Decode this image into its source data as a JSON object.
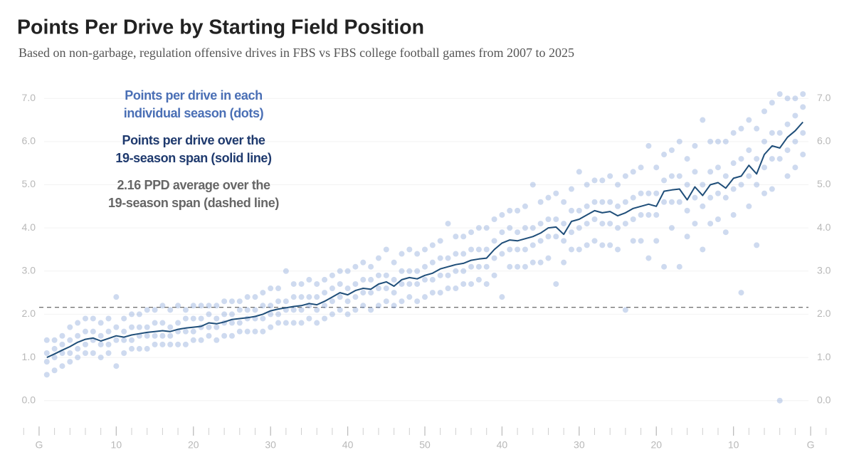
{
  "chart_data": {
    "type": "scatter_line",
    "title": "Points Per Drive by Starting Field Position",
    "subtitle": "Based on non-garbage, regulation offensive drives in FBS vs FBS college football games from 2007 to 2025",
    "annotations": [
      {
        "lines": [
          "Points per drive in each",
          "individual season (dots)"
        ],
        "color": "#4a6fb5"
      },
      {
        "lines": [
          "Points per drive over the",
          "19-season span (solid line)"
        ],
        "color": "#1f3a6e"
      },
      {
        "lines": [
          "2.16 PPD average over the",
          "19-season span (dashed line)"
        ],
        "color": "#666666"
      }
    ],
    "xlim": [
      -2.3,
      102.3
    ],
    "xticks": [
      {
        "value": 0,
        "label": "G"
      },
      10,
      20,
      30,
      40,
      50,
      {
        "value": 60,
        "label": "40"
      },
      {
        "value": 70,
        "label": "30"
      },
      {
        "value": 80,
        "label": "20"
      },
      {
        "value": 90,
        "label": "10"
      },
      {
        "value": 100,
        "label": "G"
      }
    ],
    "x_minor_tick_step": 2,
    "ylim": [
      -0.45,
      7.3
    ],
    "yticks": [
      {
        "value": 0,
        "label": "0.0"
      },
      {
        "value": 1,
        "label": "1.0"
      },
      {
        "value": 2,
        "label": "2.0"
      },
      {
        "value": 3,
        "label": "3.0"
      },
      {
        "value": 4,
        "label": "4.0"
      },
      {
        "value": 5,
        "label": "5.0"
      },
      {
        "value": 6,
        "label": "6.0"
      },
      {
        "value": 7,
        "label": "7.0"
      }
    ],
    "y2lim": [
      -0.45,
      7.3
    ],
    "y2ticks": [
      {
        "value": 0,
        "label": "0.0"
      },
      {
        "value": 1,
        "label": "1.0"
      },
      {
        "value": 2,
        "label": "2.0"
      },
      {
        "value": 3,
        "label": "3.0"
      },
      {
        "value": 4,
        "label": "4.0"
      },
      {
        "value": 5,
        "label": "5.0"
      },
      {
        "value": 6,
        "label": "6.0"
      },
      {
        "value": 7,
        "label": "7.0"
      }
    ],
    "grid": true,
    "reference_line": {
      "value": 2.16,
      "color": "#444444",
      "style": "dashed"
    },
    "dot_color": "#7f9fd6",
    "x": [
      1,
      2,
      3,
      4,
      5,
      6,
      7,
      8,
      9,
      10,
      11,
      12,
      13,
      14,
      15,
      16,
      17,
      18,
      19,
      20,
      21,
      22,
      23,
      24,
      25,
      26,
      27,
      28,
      29,
      30,
      31,
      32,
      33,
      34,
      35,
      36,
      37,
      38,
      39,
      40,
      41,
      42,
      43,
      44,
      45,
      46,
      47,
      48,
      49,
      50,
      51,
      52,
      53,
      54,
      55,
      56,
      57,
      58,
      59,
      60,
      61,
      62,
      63,
      64,
      65,
      66,
      67,
      68,
      69,
      70,
      71,
      72,
      73,
      74,
      75,
      76,
      77,
      78,
      79,
      80,
      81,
      82,
      83,
      84,
      85,
      86,
      87,
      88,
      89,
      90,
      91,
      92,
      93,
      94,
      95,
      96,
      97,
      98,
      99
    ],
    "line": {
      "color": "#1f4e79",
      "values": [
        1.0,
        1.08,
        1.17,
        1.25,
        1.35,
        1.42,
        1.45,
        1.38,
        1.44,
        1.5,
        1.47,
        1.52,
        1.55,
        1.58,
        1.6,
        1.62,
        1.6,
        1.65,
        1.68,
        1.7,
        1.72,
        1.8,
        1.78,
        1.82,
        1.88,
        1.9,
        1.92,
        1.95,
        2.0,
        2.08,
        2.12,
        2.15,
        2.18,
        2.2,
        2.25,
        2.22,
        2.3,
        2.4,
        2.5,
        2.45,
        2.55,
        2.6,
        2.58,
        2.7,
        2.75,
        2.65,
        2.8,
        2.85,
        2.82,
        2.9,
        2.95,
        3.05,
        3.1,
        3.15,
        3.18,
        3.25,
        3.28,
        3.3,
        3.5,
        3.65,
        3.72,
        3.7,
        3.75,
        3.8,
        3.88,
        4.0,
        4.02,
        3.85,
        4.15,
        4.2,
        4.3,
        4.4,
        4.35,
        4.38,
        4.28,
        4.35,
        4.45,
        4.5,
        4.55,
        4.5,
        4.85,
        4.88,
        4.9,
        4.65,
        4.95,
        4.75,
        5.0,
        5.05,
        4.92,
        5.15,
        5.2,
        5.45,
        5.25,
        5.7,
        5.9,
        5.85,
        6.1,
        6.25,
        6.45
      ]
    },
    "dots": [
      [
        0.6,
        0.9,
        1.1,
        1.4
      ],
      [
        0.7,
        1.0,
        1.2,
        1.4
      ],
      [
        0.8,
        1.1,
        1.3,
        1.5
      ],
      [
        0.9,
        1.1,
        1.4,
        1.7
      ],
      [
        1.0,
        1.2,
        1.5,
        1.8
      ],
      [
        1.1,
        1.3,
        1.6,
        1.9
      ],
      [
        1.1,
        1.4,
        1.6,
        1.9
      ],
      [
        1.0,
        1.3,
        1.5,
        1.8
      ],
      [
        1.1,
        1.3,
        1.6,
        1.9
      ],
      [
        0.8,
        1.4,
        1.7,
        2.4
      ],
      [
        1.1,
        1.4,
        1.6,
        1.9
      ],
      [
        1.2,
        1.4,
        1.7,
        2.0
      ],
      [
        1.2,
        1.5,
        1.7,
        2.0
      ],
      [
        1.2,
        1.5,
        1.7,
        2.1
      ],
      [
        1.3,
        1.5,
        1.8,
        2.1
      ],
      [
        1.3,
        1.5,
        1.8,
        2.2
      ],
      [
        1.3,
        1.5,
        1.7,
        2.1
      ],
      [
        1.3,
        1.6,
        1.8,
        2.2
      ],
      [
        1.3,
        1.6,
        1.9,
        2.1
      ],
      [
        1.4,
        1.6,
        1.9,
        2.2
      ],
      [
        1.4,
        1.7,
        1.9,
        2.2
      ],
      [
        1.5,
        1.7,
        2.0,
        2.2
      ],
      [
        1.4,
        1.7,
        1.9,
        2.2
      ],
      [
        1.5,
        1.8,
        2.0,
        2.3
      ],
      [
        1.5,
        1.8,
        2.0,
        2.3
      ],
      [
        1.6,
        1.8,
        2.1,
        2.3
      ],
      [
        1.6,
        1.9,
        2.1,
        2.4
      ],
      [
        1.6,
        1.9,
        2.1,
        2.4
      ],
      [
        1.6,
        1.9,
        2.2,
        2.5
      ],
      [
        1.7,
        2.0,
        2.2,
        2.6
      ],
      [
        1.8,
        2.0,
        2.3,
        2.6
      ],
      [
        1.8,
        2.1,
        2.3,
        3.0
      ],
      [
        1.8,
        2.1,
        2.4,
        2.7
      ],
      [
        1.8,
        2.1,
        2.4,
        2.7
      ],
      [
        1.9,
        2.2,
        2.4,
        2.8
      ],
      [
        1.8,
        2.1,
        2.4,
        2.7
      ],
      [
        1.9,
        2.2,
        2.5,
        2.8
      ],
      [
        2.0,
        2.3,
        2.6,
        2.9
      ],
      [
        2.1,
        2.4,
        2.7,
        3.0
      ],
      [
        2.0,
        2.3,
        2.6,
        3.0
      ],
      [
        2.1,
        2.4,
        2.7,
        3.1
      ],
      [
        2.2,
        2.5,
        2.8,
        3.2
      ],
      [
        2.1,
        2.5,
        2.8,
        3.1
      ],
      [
        2.2,
        2.6,
        2.9,
        3.3
      ],
      [
        2.3,
        2.6,
        2.9,
        3.5
      ],
      [
        2.2,
        2.5,
        2.8,
        3.2
      ],
      [
        2.3,
        2.7,
        3.0,
        3.4
      ],
      [
        2.4,
        2.7,
        3.0,
        3.5
      ],
      [
        2.3,
        2.7,
        3.0,
        3.4
      ],
      [
        2.4,
        2.8,
        3.1,
        3.5
      ],
      [
        2.5,
        2.8,
        3.2,
        3.6
      ],
      [
        2.5,
        2.9,
        3.3,
        3.7
      ],
      [
        2.6,
        2.9,
        3.3,
        4.1
      ],
      [
        2.6,
        3.0,
        3.4,
        3.8
      ],
      [
        2.7,
        3.0,
        3.4,
        3.8
      ],
      [
        2.7,
        3.1,
        3.5,
        3.9
      ],
      [
        2.8,
        3.1,
        3.5,
        4.0
      ],
      [
        2.7,
        3.1,
        3.5,
        4.0
      ],
      [
        2.9,
        3.3,
        3.7,
        4.2
      ],
      [
        2.4,
        3.4,
        3.9,
        4.3
      ],
      [
        3.1,
        3.5,
        4.0,
        4.4
      ],
      [
        3.1,
        3.5,
        3.9,
        4.4
      ],
      [
        3.1,
        3.5,
        4.0,
        4.5
      ],
      [
        3.2,
        3.6,
        4.0,
        5.0
      ],
      [
        3.2,
        3.7,
        4.1,
        4.6
      ],
      [
        3.3,
        3.8,
        4.2,
        4.7
      ],
      [
        2.7,
        3.8,
        4.2,
        4.8
      ],
      [
        3.2,
        3.7,
        4.1,
        4.6
      ],
      [
        3.5,
        3.9,
        4.4,
        4.9
      ],
      [
        3.5,
        4.0,
        4.4,
        5.3
      ],
      [
        3.6,
        4.1,
        4.5,
        5.0
      ],
      [
        3.7,
        4.2,
        4.6,
        5.1
      ],
      [
        3.6,
        4.1,
        4.6,
        5.1
      ],
      [
        3.6,
        4.1,
        4.6,
        5.2
      ],
      [
        3.5,
        4.0,
        4.5,
        5.0
      ],
      [
        2.1,
        4.1,
        4.6,
        5.2
      ],
      [
        3.7,
        4.2,
        4.7,
        5.3
      ],
      [
        3.7,
        4.3,
        4.8,
        5.4
      ],
      [
        3.3,
        4.3,
        4.8,
        5.9
      ],
      [
        3.7,
        4.3,
        4.8,
        5.4
      ],
      [
        3.1,
        4.6,
        5.1,
        5.7
      ],
      [
        4.0,
        4.6,
        5.2,
        5.8
      ],
      [
        3.1,
        4.6,
        5.2,
        6.0
      ],
      [
        3.8,
        4.4,
        5.0,
        5.6
      ],
      [
        4.1,
        4.7,
        5.3,
        5.9
      ],
      [
        3.5,
        4.5,
        5.0,
        6.5
      ],
      [
        4.1,
        4.7,
        5.3,
        6.0
      ],
      [
        4.2,
        4.8,
        5.4,
        6.0
      ],
      [
        3.9,
        4.7,
        5.2,
        6.0
      ],
      [
        4.3,
        4.9,
        5.5,
        6.2
      ],
      [
        2.5,
        5.0,
        5.6,
        6.3
      ],
      [
        4.5,
        5.2,
        5.8,
        6.5
      ],
      [
        3.6,
        5.0,
        5.6,
        6.3
      ],
      [
        4.8,
        5.4,
        6.0,
        6.7
      ],
      [
        4.9,
        5.6,
        6.2,
        6.9
      ],
      [
        0.0,
        5.6,
        6.2,
        7.1
      ],
      [
        5.2,
        5.8,
        6.4,
        7.0
      ],
      [
        5.4,
        6.0,
        6.6,
        7.0
      ],
      [
        5.7,
        6.2,
        6.8,
        7.1
      ]
    ]
  }
}
